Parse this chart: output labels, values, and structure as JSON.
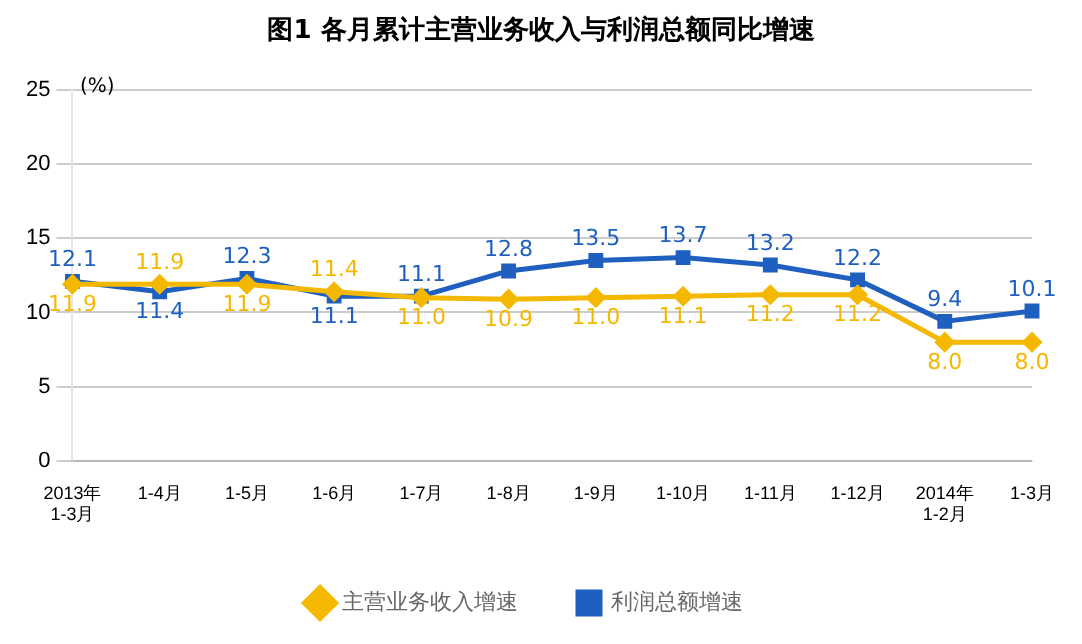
{
  "chart_data": {
    "type": "line",
    "title": "图1 各月累计主营业务收入与利润总额同比增速",
    "ylabel": "(%)",
    "categories": [
      "2013年\n1-3月",
      "1-4月",
      "1-5月",
      "1-6月",
      "1-7月",
      "1-8月",
      "1-9月",
      "1-10月",
      "1-11月",
      "1-12月",
      "2014年\n1-2月",
      "1-3月"
    ],
    "series": [
      {
        "name": "主营业务收入增速",
        "color": "#f5b800",
        "marker": "diamond",
        "values": [
          11.9,
          11.9,
          11.9,
          11.4,
          11.0,
          10.9,
          11.0,
          11.1,
          11.2,
          11.2,
          8.0,
          8.0
        ],
        "value_labels": [
          "11.9",
          "11.9",
          "11.9",
          "11.4",
          "11.0",
          "10.9",
          "11.0",
          "11.1",
          "11.2",
          "11.2",
          "8.0",
          "8.0"
        ]
      },
      {
        "name": "利润总额增速",
        "color": "#1f5fbf",
        "marker": "square",
        "values": [
          12.1,
          11.4,
          12.3,
          11.1,
          11.1,
          12.8,
          13.5,
          13.7,
          13.2,
          12.2,
          9.4,
          10.1
        ],
        "value_labels": [
          "12.1",
          "11.4",
          "12.3",
          "11.1",
          "11.1",
          "12.8",
          "13.5",
          "13.7",
          "13.2",
          "12.2",
          "9.4",
          "10.1"
        ]
      }
    ],
    "ylim": [
      0,
      25
    ],
    "yticks": [
      0,
      5,
      10,
      15,
      20,
      25
    ],
    "grid": "y",
    "legend": "bottom"
  }
}
